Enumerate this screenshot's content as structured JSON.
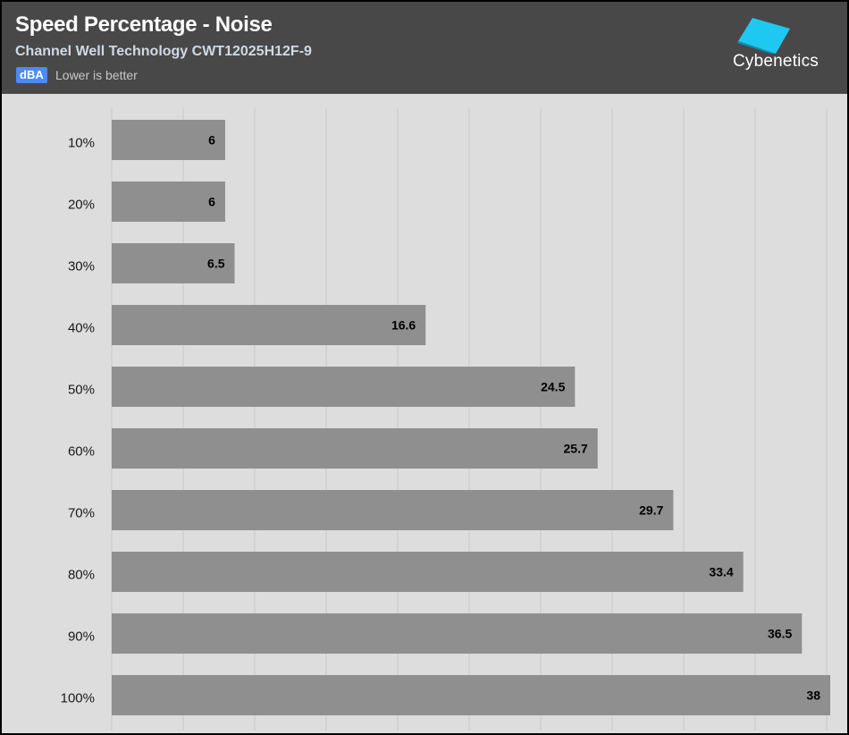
{
  "header": {
    "title": "Speed Percentage - Noise",
    "subtitle": "Channel Well Technology CWT12025H12F-9",
    "unit": "dBA",
    "note": "Lower is better",
    "brand": "Cybenetics"
  },
  "colors": {
    "header_bg": "#484848",
    "plot_bg": "#dddddd",
    "bar": "#8f8f8f",
    "unit_badge": "#4a8cf0",
    "logo": "#1ec8f0"
  },
  "icons": {
    "logo": "cybenetics-cube-icon"
  },
  "chart_data": {
    "type": "bar",
    "orientation": "horizontal",
    "categories": [
      "10%",
      "20%",
      "30%",
      "40%",
      "50%",
      "60%",
      "70%",
      "80%",
      "90%",
      "100%"
    ],
    "values": [
      6,
      6,
      6.5,
      16.6,
      24.5,
      25.7,
      29.7,
      33.4,
      36.5,
      38
    ],
    "value_labels": [
      "6",
      "6",
      "6.5",
      "16.6",
      "24.5",
      "25.7",
      "29.7",
      "33.4",
      "36.5",
      "38"
    ],
    "xlim": [
      0,
      38
    ],
    "grid": true,
    "legend": "none"
  }
}
